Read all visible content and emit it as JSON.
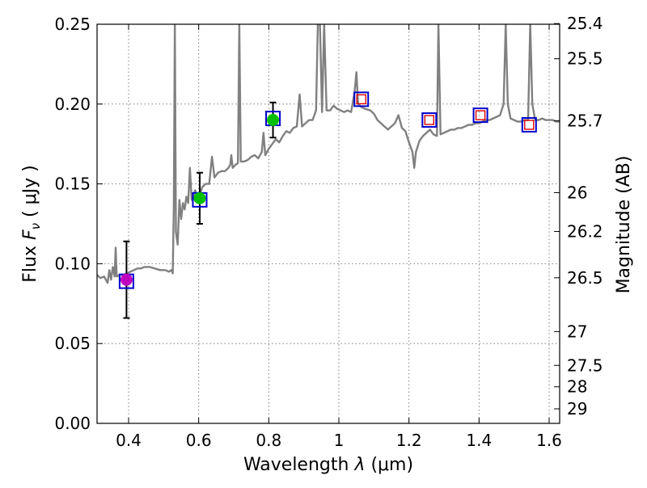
{
  "chart_data": {
    "type": "scatter",
    "xlabel_prefix": "Wavelength  ",
    "xlabel_lambda": "λ",
    "xlabel_unit": " (μm)",
    "ylabel_prefix": "Flux  ",
    "ylabel_symbol": "F",
    "ylabel_sub": "ν",
    "ylabel_unit": "  ( μJy )",
    "y2label": "Magnitude (AB)",
    "xlim": [
      0.31,
      1.63
    ],
    "ylim": [
      0.0,
      0.25
    ],
    "x_ticks": [
      0.4,
      0.6,
      0.8,
      1.0,
      1.2,
      1.4,
      1.6
    ],
    "x_tick_labels": [
      "0.4",
      "0.6",
      "0.8",
      "1",
      "1.2",
      "1.4",
      "1.6"
    ],
    "y_ticks": [
      0.0,
      0.05,
      0.1,
      0.15,
      0.2,
      0.25
    ],
    "y_tick_labels": [
      "0.00",
      "0.05",
      "0.10",
      "0.15",
      "0.20",
      "0.25"
    ],
    "mag_ticks": [
      {
        "flux": 0.2504,
        "label": "25.4"
      },
      {
        "flux": 0.2284,
        "label": "25.5"
      },
      {
        "flux": 0.1896,
        "label": "25.7"
      },
      {
        "flux": 0.1445,
        "label": "26"
      },
      {
        "flux": 0.1202,
        "label": "26.2"
      },
      {
        "flux": 0.0912,
        "label": "26.5"
      },
      {
        "flux": 0.0575,
        "label": "27"
      },
      {
        "flux": 0.0363,
        "label": "27.5"
      },
      {
        "flux": 0.0229,
        "label": "28"
      },
      {
        "flux": 0.0091,
        "label": "29"
      }
    ],
    "grid": true,
    "colors": {
      "spectrum": "#808080",
      "observed_fill_blue_band": "#bf00bf",
      "observed_fill_other": "#00bf00",
      "model_box": "#0000cc",
      "model_box_small": "#e00000",
      "errorbar": "#000000"
    },
    "spectrum": [
      [
        0.31,
        0.093
      ],
      [
        0.32,
        0.091
      ],
      [
        0.33,
        0.092
      ],
      [
        0.34,
        0.088
      ],
      [
        0.345,
        0.096
      ],
      [
        0.35,
        0.09
      ],
      [
        0.355,
        0.098
      ],
      [
        0.36,
        0.092
      ],
      [
        0.363,
        0.11
      ],
      [
        0.366,
        0.092
      ],
      [
        0.375,
        0.093
      ],
      [
        0.385,
        0.093
      ],
      [
        0.395,
        0.094
      ],
      [
        0.405,
        0.095
      ],
      [
        0.415,
        0.096
      ],
      [
        0.425,
        0.097
      ],
      [
        0.435,
        0.097
      ],
      [
        0.445,
        0.098
      ],
      [
        0.46,
        0.098
      ],
      [
        0.475,
        0.097
      ],
      [
        0.49,
        0.096
      ],
      [
        0.505,
        0.096
      ],
      [
        0.515,
        0.095
      ],
      [
        0.522,
        0.096
      ],
      [
        0.526,
        0.094
      ],
      [
        0.529,
        0.135
      ],
      [
        0.532,
        0.25
      ],
      [
        0.535,
        0.12
      ],
      [
        0.54,
        0.112
      ],
      [
        0.545,
        0.14
      ],
      [
        0.55,
        0.128
      ],
      [
        0.555,
        0.138
      ],
      [
        0.56,
        0.134
      ],
      [
        0.565,
        0.142
      ],
      [
        0.57,
        0.138
      ],
      [
        0.575,
        0.16
      ],
      [
        0.58,
        0.14
      ],
      [
        0.59,
        0.146
      ],
      [
        0.6,
        0.14
      ],
      [
        0.61,
        0.148
      ],
      [
        0.62,
        0.15
      ],
      [
        0.63,
        0.15
      ],
      [
        0.638,
        0.167
      ],
      [
        0.645,
        0.154
      ],
      [
        0.655,
        0.157
      ],
      [
        0.665,
        0.158
      ],
      [
        0.675,
        0.158
      ],
      [
        0.685,
        0.16
      ],
      [
        0.69,
        0.162
      ],
      [
        0.693,
        0.168
      ],
      [
        0.697,
        0.16
      ],
      [
        0.705,
        0.162
      ],
      [
        0.712,
        0.163
      ],
      [
        0.716,
        0.25
      ],
      [
        0.72,
        0.164
      ],
      [
        0.73,
        0.164
      ],
      [
        0.74,
        0.165
      ],
      [
        0.75,
        0.167
      ],
      [
        0.76,
        0.168
      ],
      [
        0.77,
        0.166
      ],
      [
        0.78,
        0.17
      ],
      [
        0.785,
        0.182
      ],
      [
        0.79,
        0.168
      ],
      [
        0.8,
        0.172
      ],
      [
        0.81,
        0.175
      ],
      [
        0.82,
        0.178
      ],
      [
        0.83,
        0.176
      ],
      [
        0.84,
        0.18
      ],
      [
        0.85,
        0.183
      ],
      [
        0.86,
        0.182
      ],
      [
        0.87,
        0.185
      ],
      [
        0.88,
        0.186
      ],
      [
        0.888,
        0.206
      ],
      [
        0.895,
        0.186
      ],
      [
        0.905,
        0.188
      ],
      [
        0.915,
        0.19
      ],
      [
        0.925,
        0.19
      ],
      [
        0.935,
        0.196
      ],
      [
        0.94,
        0.25
      ],
      [
        0.946,
        0.25
      ],
      [
        0.952,
        0.195
      ],
      [
        0.958,
        0.25
      ],
      [
        0.965,
        0.196
      ],
      [
        0.975,
        0.196
      ],
      [
        0.985,
        0.199
      ],
      [
        0.995,
        0.197
      ],
      [
        1.005,
        0.196
      ],
      [
        1.015,
        0.195
      ],
      [
        1.025,
        0.196
      ],
      [
        1.035,
        0.195
      ],
      [
        1.045,
        0.208
      ],
      [
        1.05,
        0.22
      ],
      [
        1.055,
        0.2
      ],
      [
        1.065,
        0.198
      ],
      [
        1.075,
        0.197
      ],
      [
        1.09,
        0.196
      ],
      [
        1.1,
        0.194
      ],
      [
        1.11,
        0.19
      ],
      [
        1.12,
        0.188
      ],
      [
        1.13,
        0.186
      ],
      [
        1.14,
        0.184
      ],
      [
        1.15,
        0.186
      ],
      [
        1.16,
        0.188
      ],
      [
        1.17,
        0.193
      ],
      [
        1.18,
        0.185
      ],
      [
        1.19,
        0.183
      ],
      [
        1.2,
        0.176
      ],
      [
        1.21,
        0.17
      ],
      [
        1.215,
        0.16
      ],
      [
        1.22,
        0.17
      ],
      [
        1.23,
        0.177
      ],
      [
        1.24,
        0.18
      ],
      [
        1.25,
        0.182
      ],
      [
        1.26,
        0.184
      ],
      [
        1.27,
        0.181
      ],
      [
        1.28,
        0.18
      ],
      [
        1.284,
        0.25
      ],
      [
        1.29,
        0.181
      ],
      [
        1.3,
        0.182
      ],
      [
        1.31,
        0.183
      ],
      [
        1.32,
        0.184
      ],
      [
        1.33,
        0.184
      ],
      [
        1.34,
        0.185
      ],
      [
        1.35,
        0.185
      ],
      [
        1.36,
        0.186
      ],
      [
        1.37,
        0.187
      ],
      [
        1.38,
        0.187
      ],
      [
        1.39,
        0.188
      ],
      [
        1.4,
        0.188
      ],
      [
        1.41,
        0.189
      ],
      [
        1.42,
        0.19
      ],
      [
        1.43,
        0.19
      ],
      [
        1.44,
        0.191
      ],
      [
        1.45,
        0.192
      ],
      [
        1.46,
        0.193
      ],
      [
        1.47,
        0.2
      ],
      [
        1.476,
        0.25
      ],
      [
        1.482,
        0.2
      ],
      [
        1.49,
        0.191
      ],
      [
        1.5,
        0.19
      ],
      [
        1.51,
        0.189
      ],
      [
        1.52,
        0.189
      ],
      [
        1.53,
        0.19
      ],
      [
        1.54,
        0.19
      ],
      [
        1.546,
        0.25
      ],
      [
        1.552,
        0.2
      ],
      [
        1.56,
        0.19
      ],
      [
        1.57,
        0.19
      ],
      [
        1.58,
        0.191
      ],
      [
        1.59,
        0.19
      ],
      [
        1.6,
        0.19
      ],
      [
        1.61,
        0.19
      ],
      [
        1.62,
        0.189
      ],
      [
        1.63,
        0.189
      ]
    ],
    "photometry": [
      {
        "x": 0.394,
        "y": 0.09,
        "yerr": 0.024,
        "model": 0.089,
        "fill": "observed_fill_blue_band"
      },
      {
        "x": 0.603,
        "y": 0.141,
        "yerr": 0.016,
        "model": 0.14,
        "fill": "observed_fill_other"
      },
      {
        "x": 0.812,
        "y": 0.19,
        "yerr": 0.011,
        "model": 0.191,
        "fill": "observed_fill_other"
      }
    ],
    "model_only": [
      {
        "x": 1.064,
        "y": 0.203
      },
      {
        "x": 1.258,
        "y": 0.19
      },
      {
        "x": 1.404,
        "y": 0.193
      },
      {
        "x": 1.543,
        "y": 0.187
      }
    ]
  }
}
